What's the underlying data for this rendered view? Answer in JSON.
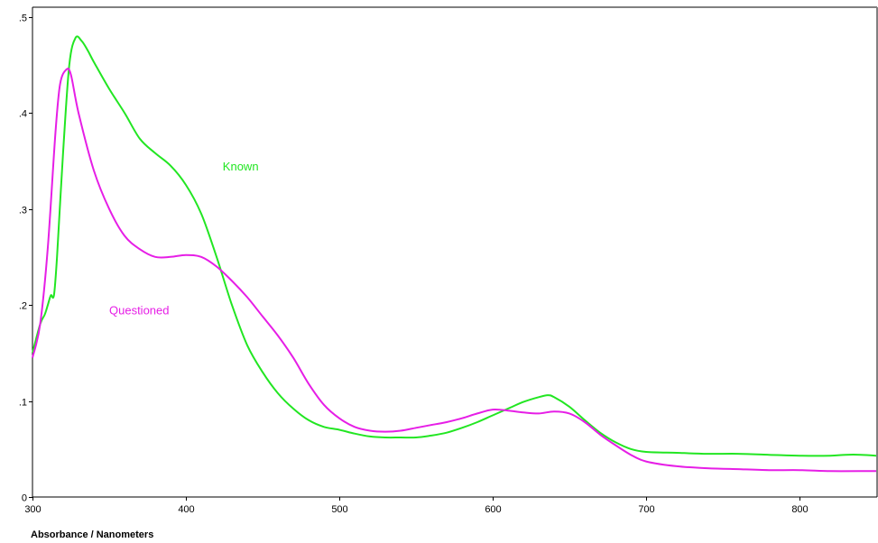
{
  "chart_data": {
    "type": "line",
    "title": "",
    "xlabel": "Absorbance / Nanometers",
    "ylabel": "",
    "xlim": [
      300,
      850
    ],
    "ylim": [
      0,
      0.51
    ],
    "x_ticks": [
      300,
      400,
      500,
      600,
      700,
      800
    ],
    "x_tick_labels": [
      "300",
      "400",
      "500",
      "600",
      "700",
      "800"
    ],
    "y_ticks": [
      0,
      0.1,
      0.2,
      0.3,
      0.4,
      0.5
    ],
    "y_tick_labels": [
      "0",
      ".1",
      ".2",
      ".3",
      ".4",
      ".5"
    ],
    "grid": false,
    "legend": "none",
    "series": [
      {
        "name": "Known",
        "color": "#22e622",
        "label_at": [
          424,
          0.34
        ],
        "x": [
          300,
          305,
          308,
          310,
          312,
          314,
          316,
          320,
          324,
          328,
          332,
          336,
          340,
          350,
          360,
          370,
          380,
          390,
          400,
          410,
          420,
          430,
          440,
          450,
          460,
          470,
          480,
          490,
          500,
          510,
          520,
          530,
          540,
          550,
          560,
          570,
          580,
          590,
          600,
          610,
          620,
          630,
          636,
          640,
          650,
          660,
          670,
          680,
          690,
          700,
          720,
          740,
          760,
          780,
          800,
          820,
          830,
          840,
          850
        ],
        "y": [
          0.15,
          0.18,
          0.19,
          0.2,
          0.21,
          0.21,
          0.25,
          0.36,
          0.45,
          0.478,
          0.475,
          0.465,
          0.453,
          0.425,
          0.4,
          0.373,
          0.358,
          0.345,
          0.325,
          0.295,
          0.25,
          0.2,
          0.158,
          0.13,
          0.108,
          0.092,
          0.08,
          0.073,
          0.07,
          0.066,
          0.063,
          0.062,
          0.062,
          0.062,
          0.064,
          0.067,
          0.072,
          0.078,
          0.085,
          0.092,
          0.099,
          0.104,
          0.106,
          0.104,
          0.094,
          0.08,
          0.067,
          0.057,
          0.05,
          0.047,
          0.046,
          0.045,
          0.045,
          0.044,
          0.043,
          0.043,
          0.044,
          0.044,
          0.043
        ]
      },
      {
        "name": "Questioned",
        "color": "#e61ee6",
        "label_at": [
          350,
          0.19
        ],
        "x": [
          300,
          305,
          310,
          315,
          318,
          322,
          325,
          330,
          340,
          350,
          360,
          370,
          380,
          390,
          400,
          410,
          420,
          430,
          440,
          450,
          460,
          470,
          480,
          490,
          500,
          510,
          520,
          530,
          540,
          550,
          560,
          570,
          580,
          590,
          600,
          610,
          620,
          630,
          640,
          650,
          660,
          670,
          680,
          690,
          700,
          720,
          740,
          760,
          780,
          800,
          820,
          840,
          850
        ],
        "y": [
          0.145,
          0.18,
          0.26,
          0.38,
          0.43,
          0.445,
          0.44,
          0.4,
          0.34,
          0.3,
          0.272,
          0.258,
          0.25,
          0.25,
          0.252,
          0.25,
          0.24,
          0.225,
          0.208,
          0.188,
          0.168,
          0.145,
          0.118,
          0.096,
          0.082,
          0.073,
          0.069,
          0.068,
          0.069,
          0.072,
          0.075,
          0.078,
          0.082,
          0.087,
          0.091,
          0.09,
          0.088,
          0.087,
          0.089,
          0.087,
          0.078,
          0.065,
          0.054,
          0.044,
          0.037,
          0.032,
          0.03,
          0.029,
          0.028,
          0.028,
          0.027,
          0.027,
          0.027
        ]
      }
    ]
  }
}
